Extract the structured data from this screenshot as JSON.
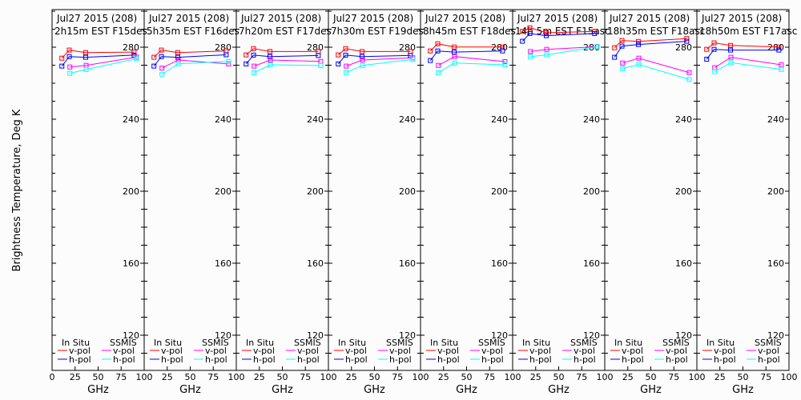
{
  "chart_data": {
    "type": "line",
    "ylabel": "Brightness Temperature, Deg K",
    "xlabel": "GHz",
    "xlim": [
      0,
      100
    ],
    "ylim": [
      100,
      300
    ],
    "yticks": [
      120,
      160,
      200,
      240,
      280
    ],
    "xticks": [
      0,
      25,
      50,
      75,
      100
    ],
    "grid": false,
    "legend": {
      "placement": "bottom",
      "group_insitu": "In Situ",
      "group_ssmis": "SSMIS",
      "entries": [
        {
          "group": "insitu",
          "label": "v-pol",
          "color": "#ff0000"
        },
        {
          "group": "insitu",
          "label": "h-pol",
          "color": "#0000ff"
        },
        {
          "group": "ssmis",
          "label": "v-pol",
          "color": "#ff00ff"
        },
        {
          "group": "ssmis",
          "label": "h-pol",
          "color": "#00ffff"
        }
      ]
    },
    "insitu_freqs": [
      10.65,
      18.7,
      36.5,
      89
    ],
    "ssmis_freqs": [
      19.35,
      37,
      91.65
    ],
    "panels": [
      {
        "title1": "Jul27 2015 (208)",
        "title2": "2h15m EST F15des",
        "insitu_v": [
          273.9,
          278.4,
          277.0,
          277.3
        ],
        "insitu_h": [
          269.5,
          274.8,
          274.4,
          275.6
        ],
        "ssmis_v": [
          269.0,
          269.9,
          274.5
        ],
        "ssmis_h": [
          265.5,
          267.6,
          273.6
        ]
      },
      {
        "title1": "Jul27 2015 (208)",
        "title2": "5h35m EST F16des",
        "insitu_v": [
          274.4,
          278.4,
          277.0,
          277.9
        ],
        "insitu_h": [
          269.5,
          274.8,
          274.4,
          275.8
        ],
        "ssmis_v": [
          268.4,
          272.9,
          270.7
        ],
        "ssmis_h": [
          265.0,
          270.8,
          272.1
        ]
      },
      {
        "title1": "Jul27 2015 (208)",
        "title2": "7h20m EST F17des",
        "insitu_v": [
          275.7,
          279.2,
          277.6,
          277.6
        ],
        "insitu_h": [
          270.7,
          275.6,
          274.8,
          275.4
        ],
        "ssmis_v": [
          269.5,
          272.9,
          272.1
        ],
        "ssmis_h": [
          265.9,
          270.2,
          269.8
        ]
      },
      {
        "title1": "Jul27 2015 (208)",
        "title2": "7h30m EST F19des",
        "insitu_v": [
          275.7,
          279.2,
          277.6,
          277.6
        ],
        "insitu_h": [
          270.7,
          275.6,
          274.8,
          275.4
        ],
        "ssmis_v": [
          269.5,
          272.9,
          274.1
        ],
        "ssmis_h": [
          265.9,
          269.9,
          273.2
        ]
      },
      {
        "title1": "Jul27 2015 (208)",
        "title2": "8h45m EST F18des",
        "insitu_v": [
          277.9,
          281.9,
          280.1,
          280.1
        ],
        "insitu_h": [
          272.6,
          277.9,
          277.3,
          277.9
        ],
        "ssmis_v": [
          269.9,
          274.8,
          272.0
        ],
        "ssmis_h": [
          265.9,
          271.2,
          270.2
        ]
      },
      {
        "title1": "Jul27 2015 (208)",
        "title2": "14h 5m EST F15asc",
        "insitu_v": [
          288.8,
          290.8,
          288.0,
          288.8
        ],
        "insitu_h": [
          283.3,
          287.6,
          286.4,
          287.6
        ],
        "ssmis_v": [
          277.6,
          278.8,
          280.3
        ],
        "ssmis_h": [
          274.8,
          275.7,
          280.3
        ]
      },
      {
        "title1": "Jul27 2015 (208)",
        "title2": "18h35m EST F18asc",
        "insitu_v": [
          279.7,
          283.7,
          283.2,
          284.8
        ],
        "insitu_h": [
          274.4,
          280.6,
          281.5,
          283.3
        ],
        "ssmis_v": [
          271.2,
          273.9,
          265.9
        ],
        "ssmis_h": [
          268.1,
          270.4,
          262.1
        ]
      },
      {
        "title1": "Jul27 2015 (208)",
        "title2": "18h50m EST F17asc",
        "insitu_v": [
          278.8,
          282.4,
          281.0,
          280.1
        ],
        "insitu_h": [
          273.3,
          278.8,
          278.4,
          278.4
        ],
        "ssmis_v": [
          268.6,
          274.4,
          270.2
        ],
        "ssmis_h": [
          266.4,
          271.4,
          267.7
        ]
      }
    ]
  }
}
